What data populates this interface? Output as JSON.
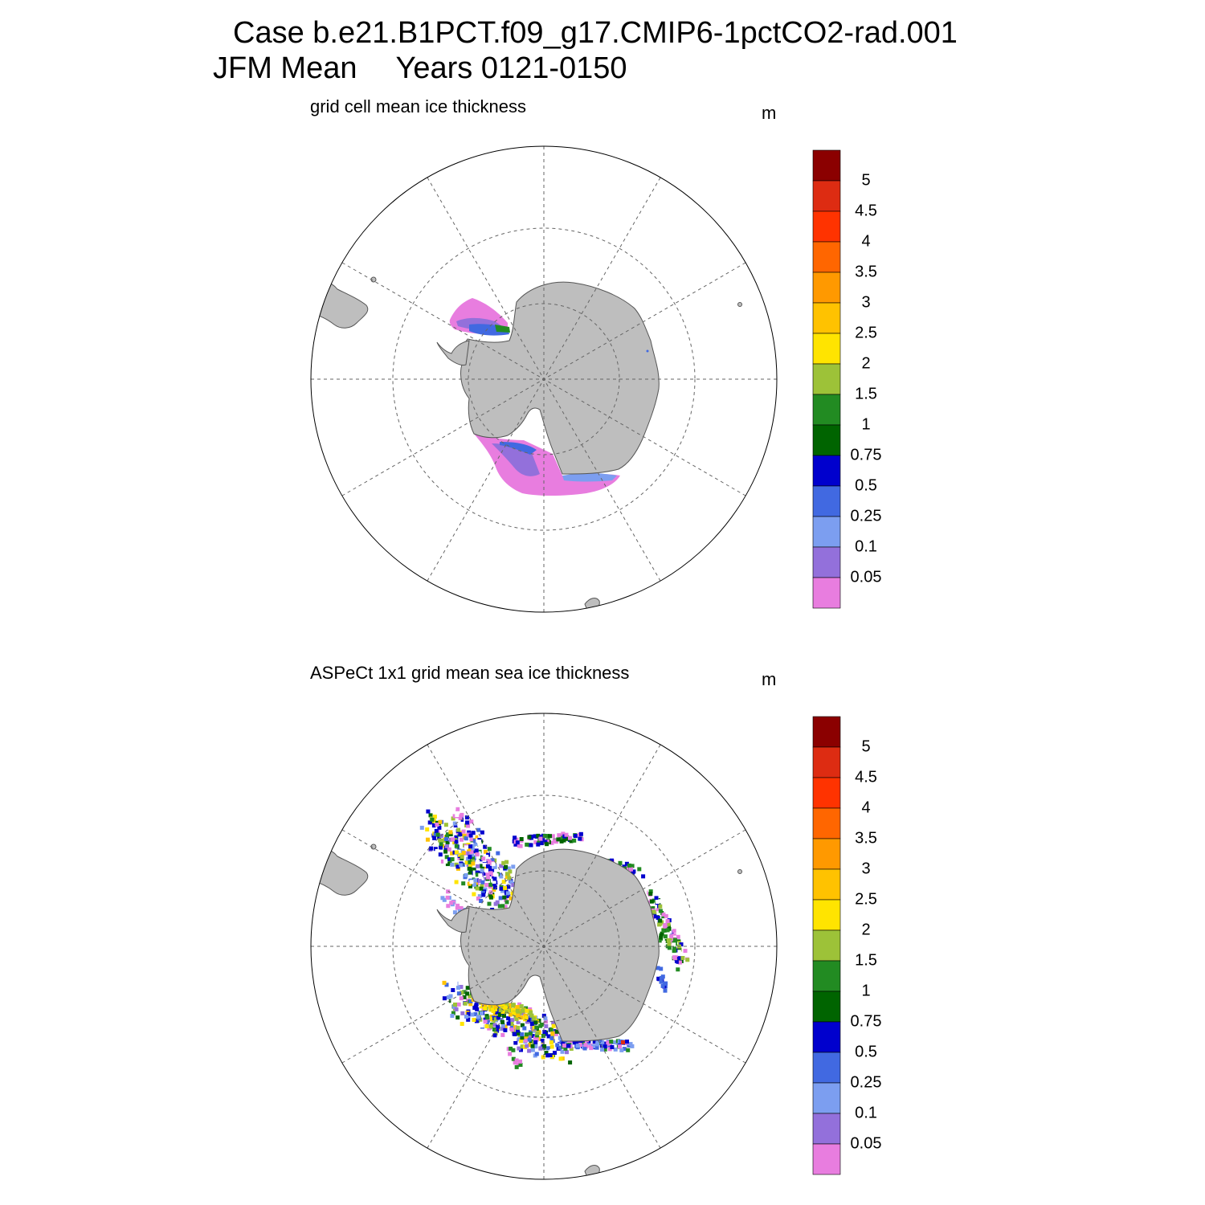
{
  "title": {
    "line1": "Case b.e21.B1PCT.f09_g17.CMIP6-1pctCO2-rad.001",
    "season": "JFM Mean",
    "years": "Years 0121-0150"
  },
  "colorbar": {
    "labels": [
      "5",
      "4.5",
      "4",
      "3.5",
      "3",
      "2.5",
      "2",
      "1.5",
      "1",
      "0.75",
      "0.5",
      "0.25",
      "0.1",
      "0.05"
    ],
    "colors": [
      "#8b0000",
      "#dd2c12",
      "#ff3300",
      "#ff6600",
      "#ff9900",
      "#ffc200",
      "#ffe400",
      "#9dc238",
      "#228b22",
      "#006400",
      "#0000cd",
      "#4169e1",
      "#7c9ef0",
      "#9370db",
      "#e87ddf"
    ]
  },
  "colors": {
    "land": "#bebebe",
    "coast": "#555555",
    "grid": "#666666",
    "ocean": "#ffffff"
  },
  "panels": [
    {
      "title": "grid cell mean ice thickness",
      "unit": "m",
      "field": "model"
    },
    {
      "title": "ASPeCt 1x1 grid mean sea ice thickness",
      "unit": "m",
      "field": "observations"
    }
  ]
}
